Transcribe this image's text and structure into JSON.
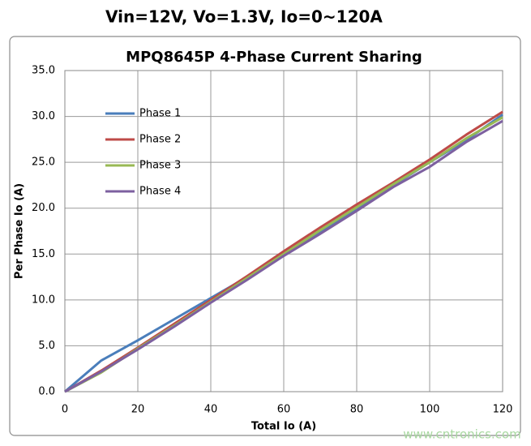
{
  "heading": "Vin=12V, Vo=1.3V, Io=0~120A",
  "watermark": "www.cntronics.com",
  "chart_data": {
    "type": "line",
    "title": "MPQ8645P 4-Phase Current Sharing",
    "x_label": "Total Io (A)",
    "y_label": "Per Phase Io (A)",
    "x": [
      0,
      10,
      20,
      30,
      40,
      50,
      60,
      70,
      80,
      90,
      100,
      110,
      120
    ],
    "series": [
      {
        "name": "Phase 1",
        "color": "#4a7ebb",
        "values": [
          0,
          3.4,
          5.6,
          7.9,
          10.2,
          12.5,
          15.0,
          17.4,
          19.8,
          22.5,
          25.0,
          27.4,
          30.2
        ]
      },
      {
        "name": "Phase 2",
        "color": "#be4b48",
        "values": [
          0,
          2.3,
          4.8,
          7.4,
          10.0,
          12.6,
          15.3,
          17.9,
          20.4,
          22.8,
          25.3,
          28.0,
          30.5
        ]
      },
      {
        "name": "Phase 3",
        "color": "#98b954",
        "values": [
          0,
          2.1,
          4.7,
          7.2,
          9.8,
          12.4,
          15.0,
          17.6,
          20.1,
          22.6,
          25.0,
          27.6,
          29.9
        ]
      },
      {
        "name": "Phase 4",
        "color": "#7d60a0",
        "values": [
          0,
          2.2,
          4.6,
          7.1,
          9.7,
          12.2,
          14.8,
          17.2,
          19.7,
          22.3,
          24.5,
          27.2,
          29.5
        ]
      }
    ],
    "xlim": [
      0,
      120
    ],
    "xticks": [
      0,
      20,
      40,
      60,
      80,
      100,
      120
    ],
    "ylim": [
      0,
      35
    ],
    "yticks": [
      {
        "value": 0,
        "label": "0.0"
      },
      {
        "value": 5,
        "label": "5.0"
      },
      {
        "value": 10,
        "label": "10.0"
      },
      {
        "value": 15,
        "label": "15.0"
      },
      {
        "value": 20,
        "label": "20.0"
      },
      {
        "value": 25,
        "label": "25.0"
      },
      {
        "value": 30,
        "label": "30.0"
      },
      {
        "value": 35,
        "label": "35.0"
      }
    ],
    "grid": true,
    "legend": "upper left"
  }
}
